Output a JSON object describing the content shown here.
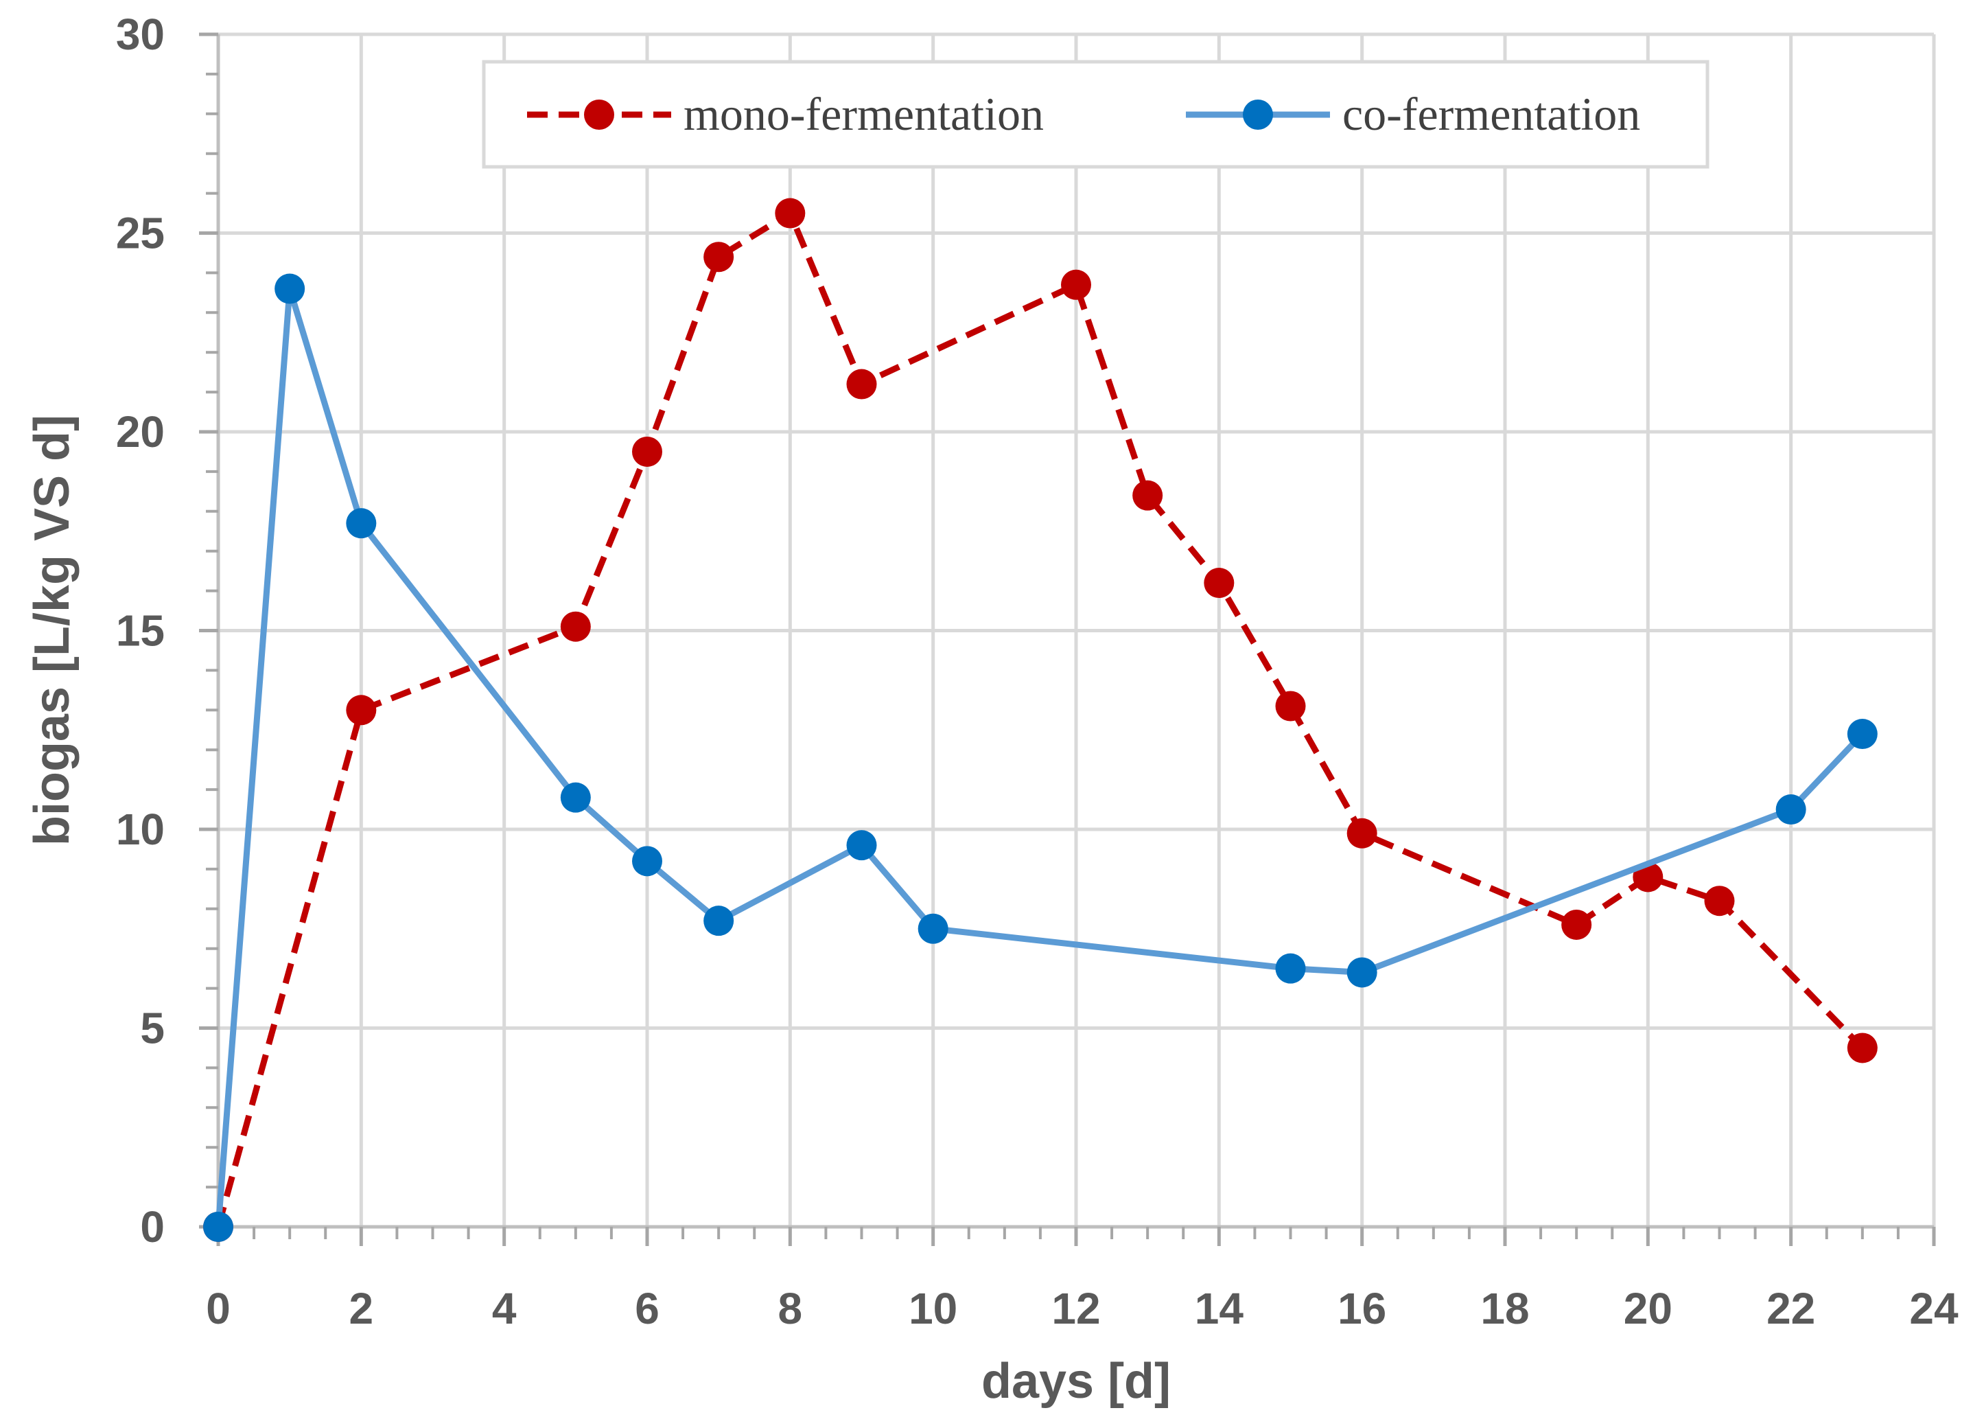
{
  "chart_data": {
    "type": "line",
    "title": "",
    "xlabel": "days [d]",
    "ylabel": "biogas [L/kg VS d]",
    "xlim": [
      0,
      24
    ],
    "ylim": [
      0,
      30
    ],
    "x_ticks": [
      0,
      2,
      4,
      6,
      8,
      10,
      12,
      14,
      16,
      18,
      20,
      22,
      24
    ],
    "y_ticks": [
      0,
      5,
      10,
      15,
      20,
      25,
      30
    ],
    "x_minor_step": 0.5,
    "y_minor_step": 1,
    "grid": true,
    "legend_position": "top-right",
    "series": [
      {
        "name": "mono-fermentation",
        "color": "#C00000",
        "line_style": "dashed",
        "marker": "circle",
        "x": [
          0,
          2,
          5,
          6,
          7,
          8,
          9,
          12,
          13,
          14,
          15,
          16,
          19,
          20,
          21,
          23
        ],
        "values": [
          0,
          13.0,
          15.1,
          19.5,
          24.4,
          25.5,
          21.2,
          23.7,
          18.4,
          16.2,
          13.1,
          9.9,
          7.6,
          8.8,
          8.2,
          4.5
        ]
      },
      {
        "name": "co-fermentation",
        "color": "#5B9BD5",
        "marker_color": "#0070C0",
        "line_style": "solid",
        "marker": "circle",
        "x": [
          0,
          1,
          2,
          5,
          6,
          7,
          9,
          10,
          15,
          16,
          22,
          23
        ],
        "values": [
          0,
          23.6,
          17.7,
          10.8,
          9.2,
          7.7,
          9.6,
          7.5,
          6.5,
          6.4,
          10.5,
          12.4
        ]
      }
    ]
  }
}
